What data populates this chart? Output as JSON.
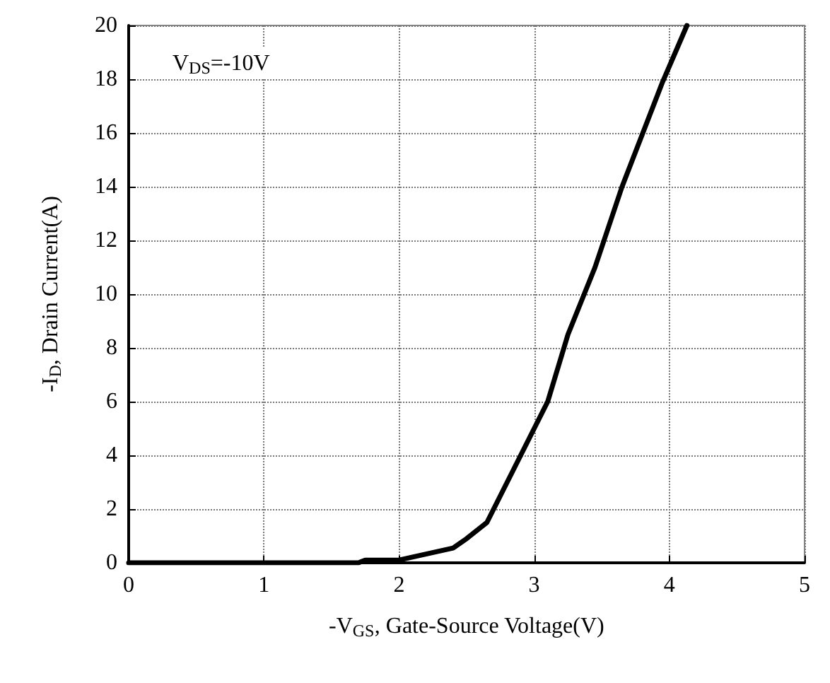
{
  "chart_data": {
    "type": "line",
    "xlabel": "-V$_{GS}$, Gate-Source Voltage(V)",
    "ylabel": "-I$_{D}$, Drain Current(A)",
    "annotations": [
      "V$_{DS}$=-10V"
    ],
    "series": [
      {
        "color": "#000000",
        "x": [
          0,
          1.7,
          1.75,
          2,
          2.4,
          2.5,
          2.65,
          2.75,
          2.85,
          3,
          3.1,
          3.25,
          3.45,
          3.65,
          3.95,
          4.13
        ],
        "values": [
          0,
          0,
          0.1,
          0.1,
          0.55,
          0.9,
          1.5,
          2.5,
          3.5,
          5,
          6,
          8.5,
          11,
          14,
          17.9,
          20
        ]
      }
    ],
    "xlim": [
      0,
      5
    ],
    "xticks": [
      0,
      1,
      2,
      3,
      4,
      5
    ],
    "ylim": [
      0,
      20
    ],
    "yticks": [
      0,
      2,
      4,
      6,
      8,
      10,
      12,
      14,
      16,
      18,
      20
    ],
    "grid": true,
    "marker": "none",
    "line_style": "solid"
  }
}
